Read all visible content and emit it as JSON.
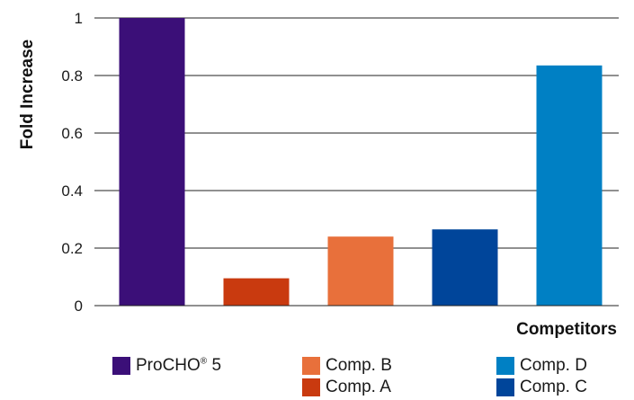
{
  "chart_data": {
    "type": "bar",
    "categories": [
      "ProCHO® 5",
      "Comp. A",
      "Comp. B",
      "Comp. C",
      "Comp. D"
    ],
    "values": [
      1.0,
      0.095,
      0.24,
      0.265,
      0.835
    ],
    "colors": [
      "#3b0f78",
      "#c93a0f",
      "#e8703b",
      "#00459a",
      "#0080c4"
    ],
    "title": "",
    "xlabel": "Competitors",
    "ylabel": "Fold Increase",
    "ylim": [
      0,
      1
    ],
    "yticks": [
      "0",
      "0.2",
      "0.4",
      "0.6",
      "0.8",
      "1"
    ],
    "grid": true,
    "legend_position": "bottom"
  },
  "legend": {
    "items": [
      {
        "label_main": "ProCHO",
        "label_sup": "®",
        "label_tail": " 5",
        "color": "#3b0f78"
      },
      {
        "label": "Comp. B",
        "color": "#e8703b"
      },
      {
        "label": "Comp. A",
        "color": "#c93a0f"
      },
      {
        "label": "Comp. D",
        "color": "#0080c4"
      },
      {
        "label": "Comp. C",
        "color": "#00459a"
      }
    ]
  }
}
